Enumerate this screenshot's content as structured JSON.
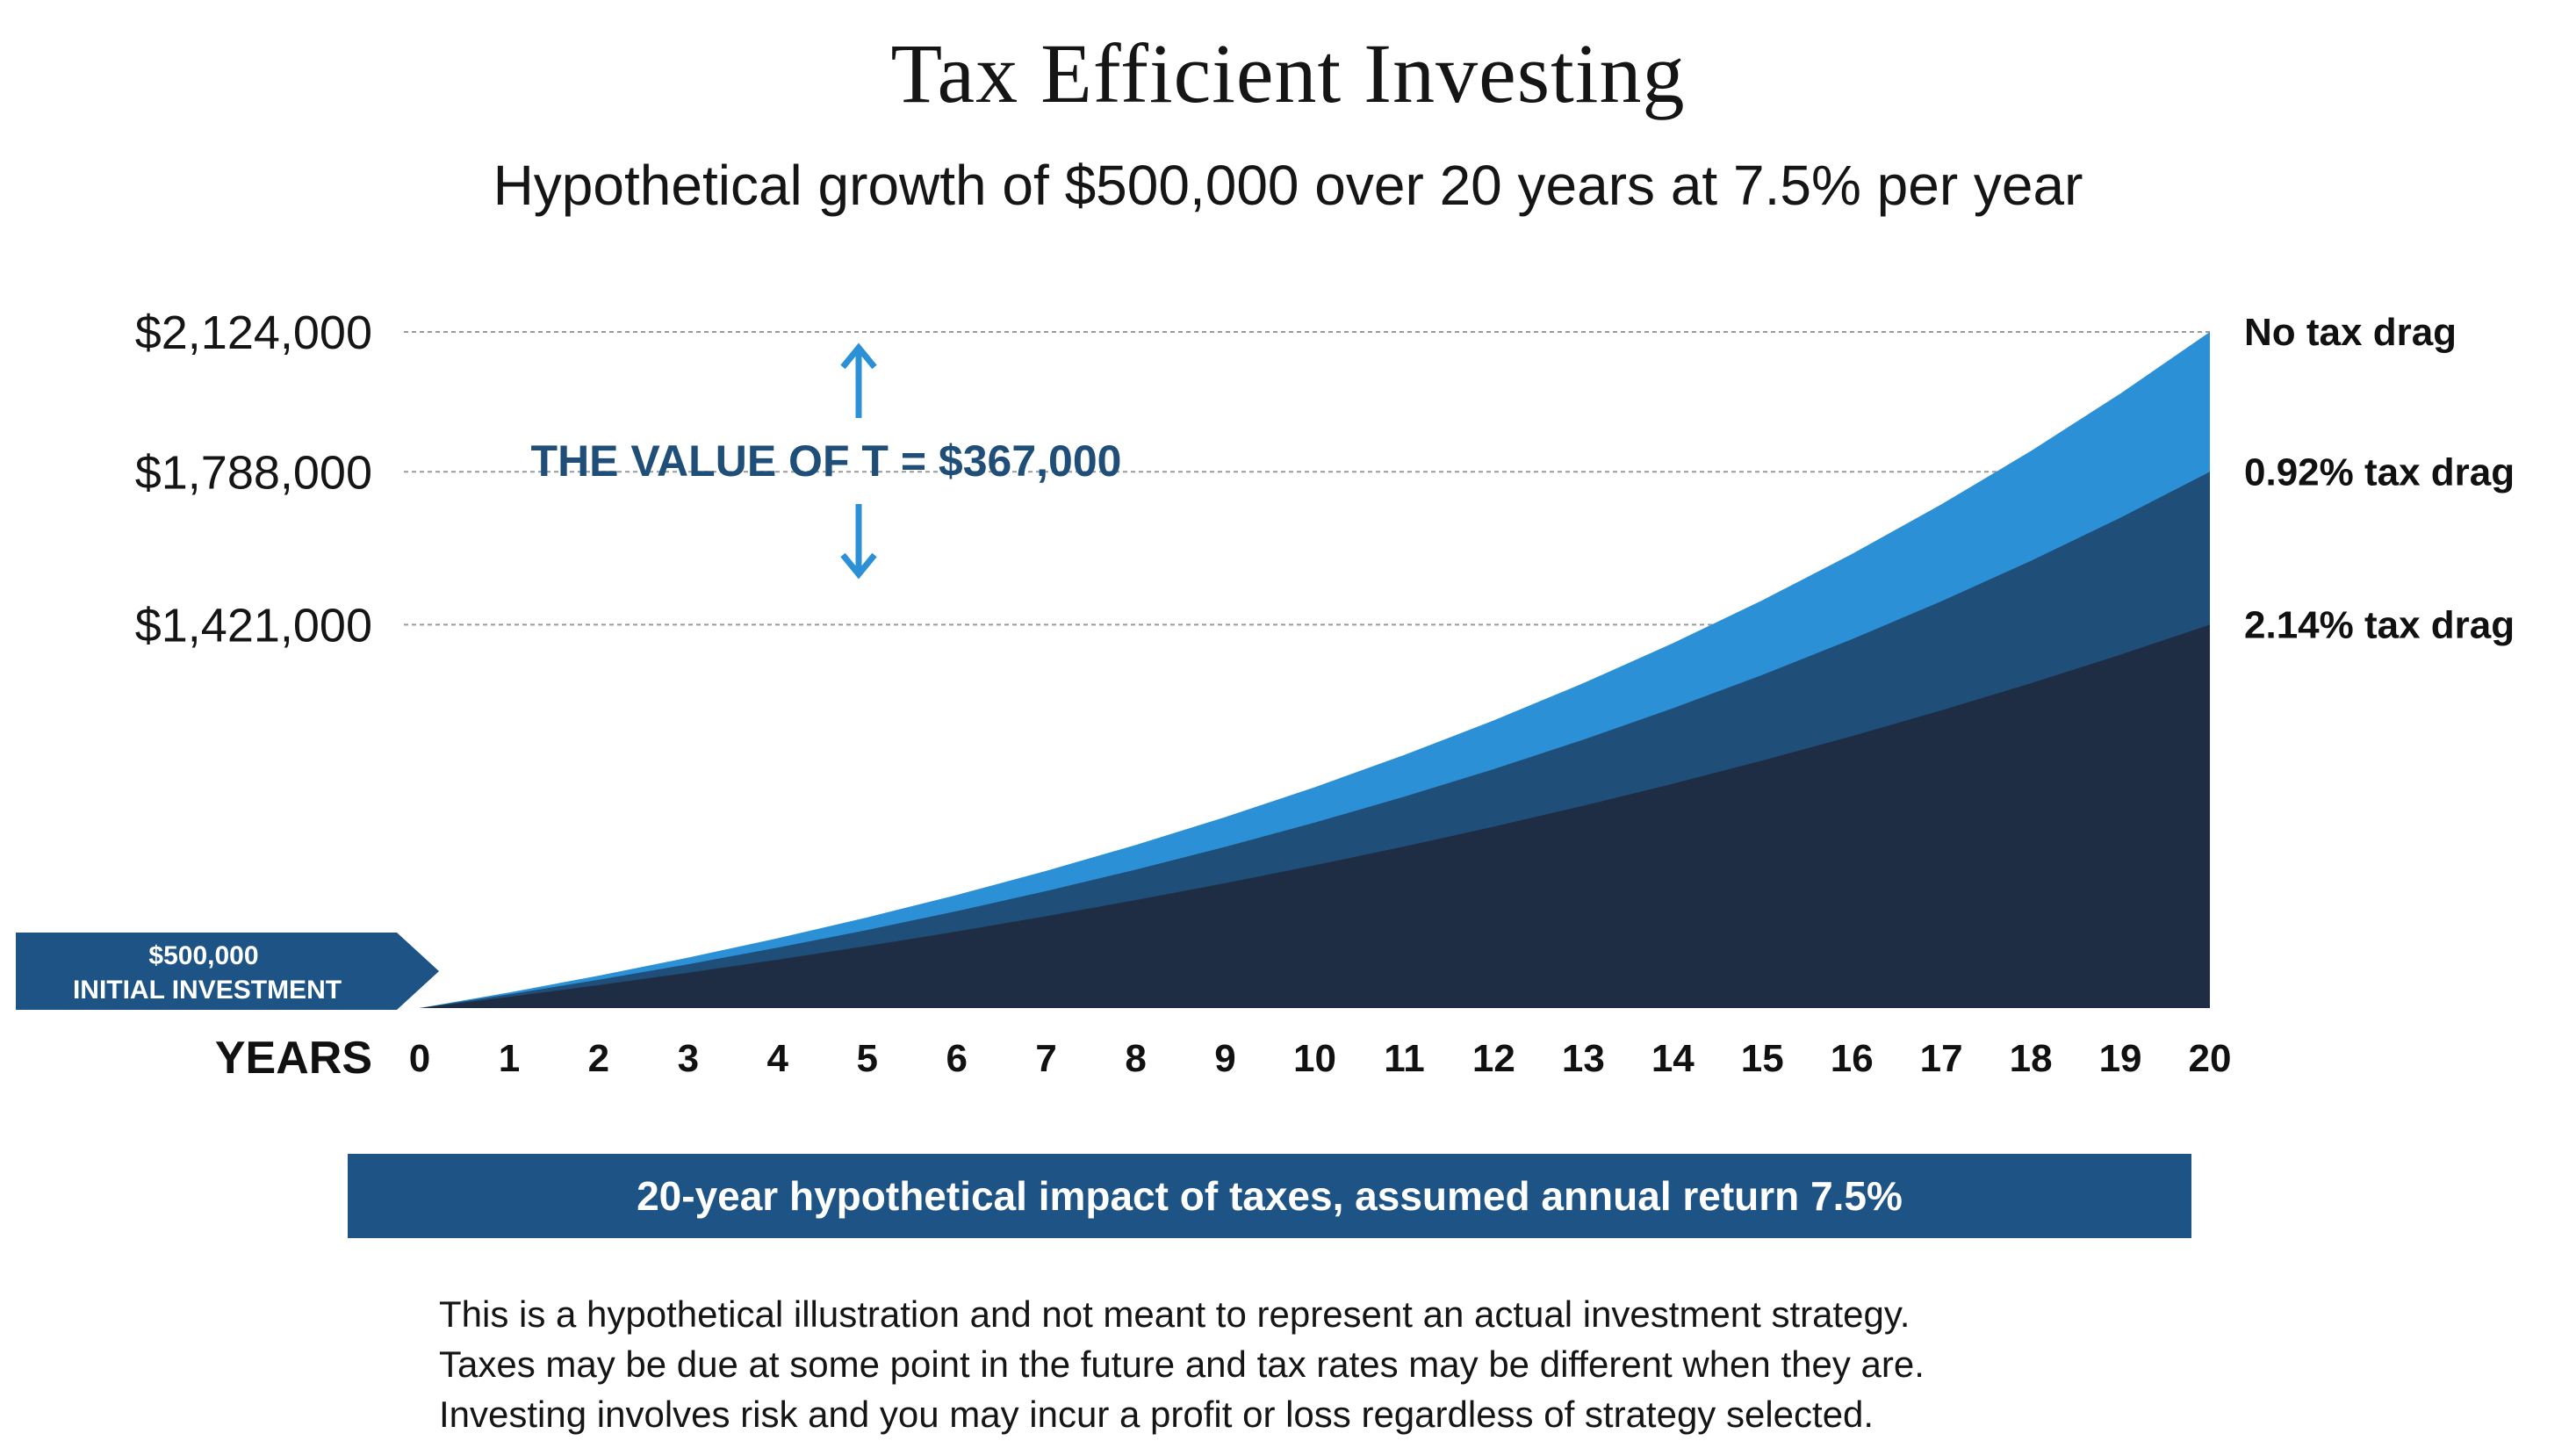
{
  "chart_data": {
    "type": "area",
    "title": "Tax Efficient Investing",
    "subtitle": "Hypothetical growth of $500,000 over 20 years at 7.5% per year",
    "xlabel": "YEARS",
    "x": [
      0,
      1,
      2,
      3,
      4,
      5,
      6,
      7,
      8,
      9,
      10,
      11,
      12,
      13,
      14,
      15,
      16,
      17,
      18,
      19,
      20
    ],
    "xlim": [
      0,
      20
    ],
    "ylim": [
      500000,
      2124000
    ],
    "ytick_values": [
      2124000,
      1788000,
      1421000
    ],
    "ytick_labels": [
      "$2,124,000",
      "$1,788,000",
      "$1,421,000"
    ],
    "grid": "horizontal dashed at tick values",
    "series": [
      {
        "name": "No tax drag",
        "start": 500000,
        "end": 2124000,
        "color": "#2b90d6"
      },
      {
        "name": "0.92% tax drag",
        "start": 500000,
        "end": 1788000,
        "color": "#1f4e79"
      },
      {
        "name": "2.14% tax drag",
        "start": 500000,
        "end": 1421000,
        "color": "#1e2d44"
      }
    ],
    "initial_label_lines": [
      "$500,000",
      "INITIAL INVESTMENT"
    ],
    "annotation": {
      "text": "THE VALUE OF T = $367,000",
      "color": "#1f4e79",
      "arrow_color": "#2b90d6"
    }
  },
  "footer": {
    "banner": "20-year hypothetical impact of taxes, assumed annual return 7.5%",
    "banner_color": "#1e5385",
    "disclaimer": [
      "This is a hypothetical illustration and not meant to represent an actual investment strategy.",
      "Taxes may be due at some point in the future and tax rates may be different when they are.",
      "Investing involves risk and you may incur a profit or loss regardless of strategy selected."
    ]
  }
}
